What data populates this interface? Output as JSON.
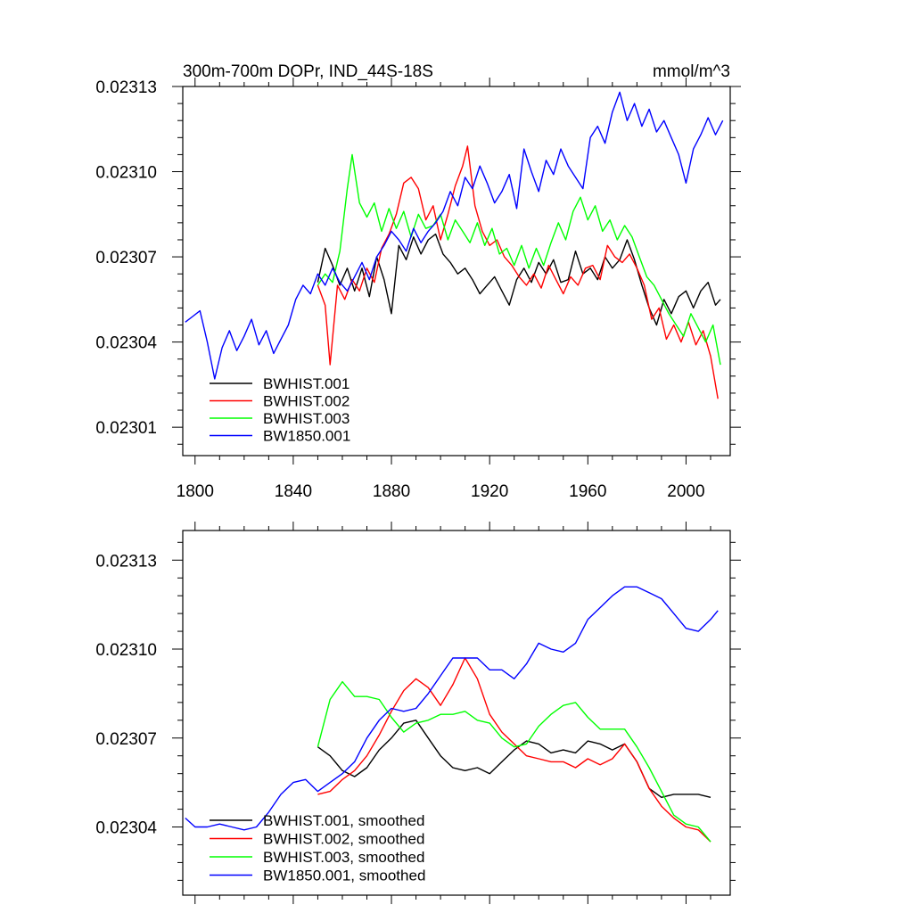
{
  "chart_data": [
    {
      "type": "line",
      "title": "300m-700m DOPr, IND_44S-18S",
      "units": "mmol/m^3",
      "xlim": [
        1795,
        2018
      ],
      "ylim": [
        0.023,
        0.02313
      ],
      "xticks": [
        1800,
        1840,
        1880,
        1920,
        1960,
        2000
      ],
      "xtick_labels": [
        "1800",
        "1840",
        "1880",
        "1920",
        "1960",
        "2000"
      ],
      "yticks": [
        0.02301,
        0.02304,
        0.02307,
        0.0231,
        0.02313
      ],
      "ytick_labels": [
        "0.02301",
        "0.02304",
        "0.02307",
        "0.02310",
        "0.02313"
      ],
      "grid": false,
      "legend_position": "bottom-left",
      "series": [
        {
          "name": "BWHIST.001",
          "color": "#000000",
          "x": [
            1850,
            1853,
            1856,
            1859,
            1862,
            1865,
            1868,
            1871,
            1874,
            1877,
            1880,
            1883,
            1886,
            1889,
            1892,
            1895,
            1898,
            1901,
            1904,
            1907,
            1910,
            1913,
            1916,
            1919,
            1922,
            1925,
            1928,
            1931,
            1934,
            1937,
            1940,
            1943,
            1946,
            1949,
            1952,
            1955,
            1958,
            1961,
            1964,
            1967,
            1970,
            1973,
            1976,
            1979,
            1982,
            1985,
            1988,
            1991,
            1994,
            1997,
            2000,
            2003,
            2006,
            2009,
            2012,
            2014
          ],
          "y": [
            0.023061,
            0.023073,
            0.023067,
            0.02306,
            0.023066,
            0.023058,
            0.023066,
            0.023056,
            0.02307,
            0.023062,
            0.02305,
            0.023074,
            0.023069,
            0.023077,
            0.023071,
            0.023076,
            0.023078,
            0.023071,
            0.023068,
            0.023064,
            0.023066,
            0.023062,
            0.023057,
            0.02306,
            0.023063,
            0.023058,
            0.023053,
            0.023062,
            0.023066,
            0.023061,
            0.023068,
            0.023064,
            0.023069,
            0.023061,
            0.023062,
            0.023072,
            0.023064,
            0.023066,
            0.023062,
            0.02307,
            0.023066,
            0.023069,
            0.023076,
            0.023069,
            0.02306,
            0.023052,
            0.023046,
            0.023055,
            0.02305,
            0.023056,
            0.023058,
            0.023052,
            0.023058,
            0.023061,
            0.023053,
            0.023055
          ]
        },
        {
          "name": "BWHIST.002",
          "color": "#ff0000",
          "x": [
            1850,
            1853,
            1855,
            1858,
            1861,
            1864,
            1867,
            1870,
            1873,
            1876,
            1879,
            1882,
            1885,
            1888,
            1891,
            1894,
            1897,
            1900,
            1903,
            1906,
            1909,
            1911,
            1914,
            1917,
            1920,
            1923,
            1926,
            1929,
            1932,
            1935,
            1938,
            1941,
            1944,
            1947,
            1950,
            1953,
            1956,
            1959,
            1962,
            1965,
            1968,
            1971,
            1974,
            1977,
            1980,
            1983,
            1986,
            1989,
            1992,
            1995,
            1998,
            2001,
            2004,
            2007,
            2010,
            2013
          ],
          "y": [
            0.02306,
            0.023053,
            0.023032,
            0.02306,
            0.023055,
            0.023062,
            0.023058,
            0.023066,
            0.023061,
            0.023073,
            0.023078,
            0.023085,
            0.023096,
            0.023098,
            0.023094,
            0.023083,
            0.023088,
            0.023076,
            0.023085,
            0.023095,
            0.023102,
            0.023109,
            0.023088,
            0.023079,
            0.023074,
            0.023076,
            0.02307,
            0.023067,
            0.023063,
            0.02306,
            0.023064,
            0.023059,
            0.023067,
            0.023062,
            0.023057,
            0.023063,
            0.02306,
            0.023066,
            0.023067,
            0.023062,
            0.023074,
            0.02307,
            0.023068,
            0.023071,
            0.023066,
            0.02306,
            0.023048,
            0.023052,
            0.023041,
            0.023046,
            0.02304,
            0.023047,
            0.023039,
            0.023044,
            0.023035,
            0.02302
          ]
        },
        {
          "name": "BWHIST.003",
          "color": "#00ff00",
          "x": [
            1850,
            1853,
            1856,
            1859,
            1862,
            1864,
            1867,
            1870,
            1873,
            1876,
            1879,
            1882,
            1885,
            1888,
            1891,
            1894,
            1897,
            1900,
            1903,
            1906,
            1909,
            1912,
            1915,
            1918,
            1921,
            1924,
            1927,
            1930,
            1933,
            1936,
            1939,
            1942,
            1945,
            1948,
            1951,
            1954,
            1957,
            1960,
            1963,
            1966,
            1969,
            1972,
            1975,
            1978,
            1981,
            1984,
            1987,
            1990,
            1993,
            1996,
            1999,
            2002,
            2005,
            2008,
            2011,
            2014
          ],
          "y": [
            0.02306,
            0.023064,
            0.023061,
            0.023072,
            0.023094,
            0.023106,
            0.023089,
            0.023084,
            0.023089,
            0.023079,
            0.023087,
            0.02308,
            0.023086,
            0.023077,
            0.023085,
            0.02308,
            0.023081,
            0.023085,
            0.023076,
            0.023083,
            0.023079,
            0.023075,
            0.023082,
            0.023074,
            0.02308,
            0.023071,
            0.023073,
            0.023067,
            0.023074,
            0.023066,
            0.023073,
            0.023067,
            0.023075,
            0.023082,
            0.023076,
            0.023086,
            0.023091,
            0.023083,
            0.023088,
            0.023079,
            0.023083,
            0.023076,
            0.023081,
            0.023077,
            0.02307,
            0.023063,
            0.02306,
            0.023055,
            0.02305,
            0.023046,
            0.023042,
            0.02305,
            0.023045,
            0.02304,
            0.023046,
            0.023032
          ]
        },
        {
          "name": "BW1850.001",
          "color": "#0000ff",
          "x": [
            1796,
            1799,
            1802,
            1805,
            1808,
            1811,
            1814,
            1817,
            1820,
            1823,
            1826,
            1829,
            1832,
            1835,
            1838,
            1841,
            1844,
            1847,
            1850,
            1853,
            1856,
            1859,
            1862,
            1865,
            1868,
            1871,
            1874,
            1877,
            1880,
            1883,
            1886,
            1889,
            1892,
            1895,
            1898,
            1901,
            1904,
            1907,
            1910,
            1913,
            1916,
            1919,
            1922,
            1925,
            1928,
            1931,
            1934,
            1937,
            1940,
            1943,
            1946,
            1949,
            1952,
            1955,
            1958,
            1961,
            1964,
            1967,
            1970,
            1973,
            1976,
            1979,
            1982,
            1985,
            1988,
            1991,
            1994,
            1997,
            2000,
            2003,
            2006,
            2009,
            2012,
            2015
          ],
          "y": [
            0.023047,
            0.023049,
            0.023051,
            0.02304,
            0.023027,
            0.023038,
            0.023044,
            0.023037,
            0.023042,
            0.023048,
            0.023039,
            0.023044,
            0.023036,
            0.023041,
            0.023046,
            0.023055,
            0.02306,
            0.023057,
            0.023064,
            0.02306,
            0.023066,
            0.023061,
            0.023058,
            0.023063,
            0.023068,
            0.023062,
            0.02307,
            0.023074,
            0.023079,
            0.023076,
            0.023072,
            0.02308,
            0.023075,
            0.023079,
            0.023082,
            0.023086,
            0.023093,
            0.023088,
            0.023098,
            0.023094,
            0.023102,
            0.023096,
            0.023089,
            0.023093,
            0.023099,
            0.023087,
            0.023108,
            0.0231,
            0.023093,
            0.023104,
            0.023099,
            0.023108,
            0.023102,
            0.023098,
            0.023094,
            0.023112,
            0.023116,
            0.02311,
            0.023121,
            0.023128,
            0.023118,
            0.023124,
            0.023116,
            0.023122,
            0.023114,
            0.023118,
            0.023112,
            0.023106,
            0.023096,
            0.023108,
            0.023113,
            0.023119,
            0.023113,
            0.023118
          ]
        }
      ]
    },
    {
      "type": "line",
      "title": "",
      "xlim": [
        1795,
        2018
      ],
      "ylim": [
        0.023017,
        0.02314
      ],
      "xticks": [
        1800,
        1840,
        1880,
        1920,
        1960,
        2000
      ],
      "yticks": [
        0.02304,
        0.02307,
        0.0231,
        0.02313
      ],
      "ytick_labels": [
        "0.02304",
        "0.02307",
        "0.02310",
        "0.02313"
      ],
      "grid": false,
      "legend_position": "bottom-left",
      "series": [
        {
          "name": "BWHIST.001, smoothed",
          "color": "#000000",
          "x": [
            1850,
            1855,
            1860,
            1865,
            1870,
            1875,
            1880,
            1885,
            1890,
            1895,
            1900,
            1905,
            1910,
            1915,
            1920,
            1925,
            1930,
            1935,
            1940,
            1945,
            1950,
            1955,
            1960,
            1965,
            1970,
            1975,
            1980,
            1985,
            1990,
            1995,
            2000,
            2005,
            2010
          ],
          "y": [
            0.023067,
            0.023064,
            0.023059,
            0.023057,
            0.02306,
            0.023066,
            0.02307,
            0.023075,
            0.023076,
            0.02307,
            0.023064,
            0.02306,
            0.023059,
            0.02306,
            0.023058,
            0.023062,
            0.023066,
            0.023069,
            0.023068,
            0.023065,
            0.023066,
            0.023065,
            0.023069,
            0.023068,
            0.023066,
            0.023068,
            0.023062,
            0.023053,
            0.02305,
            0.023051,
            0.023051,
            0.023051,
            0.02305
          ]
        },
        {
          "name": "BWHIST.002, smoothed",
          "color": "#ff0000",
          "x": [
            1850,
            1855,
            1860,
            1865,
            1870,
            1875,
            1880,
            1885,
            1890,
            1895,
            1900,
            1905,
            1910,
            1915,
            1920,
            1925,
            1930,
            1935,
            1940,
            1945,
            1950,
            1955,
            1960,
            1965,
            1970,
            1975,
            1980,
            1985,
            1990,
            1995,
            2000,
            2005,
            2010
          ],
          "y": [
            0.023051,
            0.023052,
            0.023056,
            0.023059,
            0.023064,
            0.023071,
            0.023079,
            0.023086,
            0.02309,
            0.023087,
            0.023081,
            0.023088,
            0.023097,
            0.02309,
            0.023078,
            0.023072,
            0.023068,
            0.023064,
            0.023063,
            0.023062,
            0.023062,
            0.02306,
            0.023063,
            0.023061,
            0.023063,
            0.023068,
            0.023062,
            0.023053,
            0.023047,
            0.023043,
            0.02304,
            0.023039,
            0.023035
          ]
        },
        {
          "name": "BWHIST.003, smoothed",
          "color": "#00ff00",
          "x": [
            1850,
            1855,
            1860,
            1865,
            1870,
            1875,
            1880,
            1885,
            1890,
            1895,
            1900,
            1905,
            1910,
            1915,
            1920,
            1925,
            1930,
            1935,
            1940,
            1945,
            1950,
            1955,
            1960,
            1965,
            1970,
            1975,
            1980,
            1985,
            1990,
            1995,
            2000,
            2005,
            2010
          ],
          "y": [
            0.023067,
            0.023083,
            0.023089,
            0.023084,
            0.023084,
            0.023083,
            0.023077,
            0.023072,
            0.023075,
            0.023076,
            0.023078,
            0.023078,
            0.023079,
            0.023076,
            0.023075,
            0.02307,
            0.023067,
            0.023068,
            0.023074,
            0.023078,
            0.023081,
            0.023082,
            0.023077,
            0.023073,
            0.023073,
            0.023073,
            0.023067,
            0.02306,
            0.023052,
            0.023044,
            0.023041,
            0.02304,
            0.023035
          ]
        },
        {
          "name": "BW1850.001, smoothed",
          "color": "#0000ff",
          "x": [
            1796,
            1800,
            1805,
            1810,
            1815,
            1820,
            1825,
            1830,
            1835,
            1840,
            1845,
            1850,
            1855,
            1860,
            1865,
            1870,
            1875,
            1880,
            1885,
            1890,
            1895,
            1900,
            1905,
            1910,
            1915,
            1920,
            1925,
            1930,
            1935,
            1940,
            1945,
            1950,
            1955,
            1960,
            1965,
            1970,
            1975,
            1980,
            1985,
            1990,
            1995,
            2000,
            2005,
            2010,
            2013
          ],
          "y": [
            0.023043,
            0.02304,
            0.02304,
            0.023041,
            0.02304,
            0.023039,
            0.02304,
            0.023045,
            0.023051,
            0.023055,
            0.023056,
            0.023052,
            0.023055,
            0.023058,
            0.023062,
            0.02307,
            0.023076,
            0.02308,
            0.023079,
            0.02308,
            0.023085,
            0.023091,
            0.023097,
            0.023097,
            0.023097,
            0.023093,
            0.023093,
            0.02309,
            0.023095,
            0.023102,
            0.0231,
            0.023099,
            0.023102,
            0.02311,
            0.023114,
            0.023118,
            0.023121,
            0.023121,
            0.023119,
            0.023117,
            0.023112,
            0.023107,
            0.023106,
            0.02311,
            0.023113
          ]
        }
      ]
    }
  ]
}
